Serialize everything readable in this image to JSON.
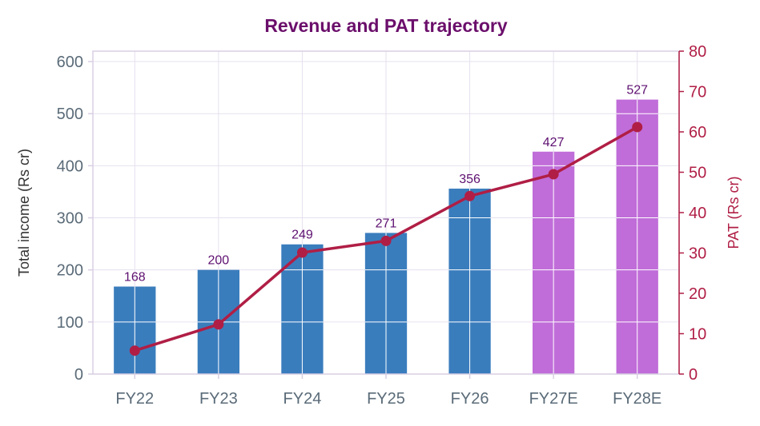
{
  "chart_data": {
    "type": "bar",
    "title": "Revenue and PAT trajectory",
    "categories": [
      "FY22",
      "FY23",
      "FY24",
      "FY25",
      "FY26",
      "FY27E",
      "FY28E"
    ],
    "series": [
      {
        "name": "Total income (Rs cr)",
        "type": "bar",
        "axis": "left",
        "values": [
          168,
          200,
          249,
          271,
          356,
          427,
          527
        ],
        "data_labels": [
          "168",
          "200",
          "249",
          "271",
          "356",
          "427",
          "527"
        ],
        "colors": [
          "#3a7dbd",
          "#3a7dbd",
          "#3a7dbd",
          "#3a7dbd",
          "#3a7dbd",
          "#c06dd9",
          "#c06dd9"
        ]
      },
      {
        "name": "PAT (Rs cr)",
        "type": "line",
        "axis": "right",
        "values": [
          5.8,
          12.3,
          30.1,
          33.0,
          44.1,
          49.5,
          61.2
        ],
        "color": "#b01e45"
      }
    ],
    "ylabel": "Total income (Rs cr)",
    "y2label": "PAT (Rs cr)",
    "ylim": [
      0,
      620
    ],
    "y2lim": [
      0,
      80
    ],
    "yticks": [
      0,
      100,
      200,
      300,
      400,
      500,
      600
    ],
    "y2ticks": [
      0,
      10,
      20,
      30,
      40,
      50,
      60,
      70,
      80
    ],
    "grid": true,
    "colors": {
      "title": "#6b0f6b",
      "left_axis_text": "#5a6b78",
      "right_axis": "#b01e45",
      "grid": "#e6e0ee",
      "frame": "#d9cfe3",
      "data_label": "#5e1070",
      "actual_bar": "#3a7dbd",
      "estimate_bar": "#c06dd9",
      "pat_line": "#b01e45"
    }
  }
}
